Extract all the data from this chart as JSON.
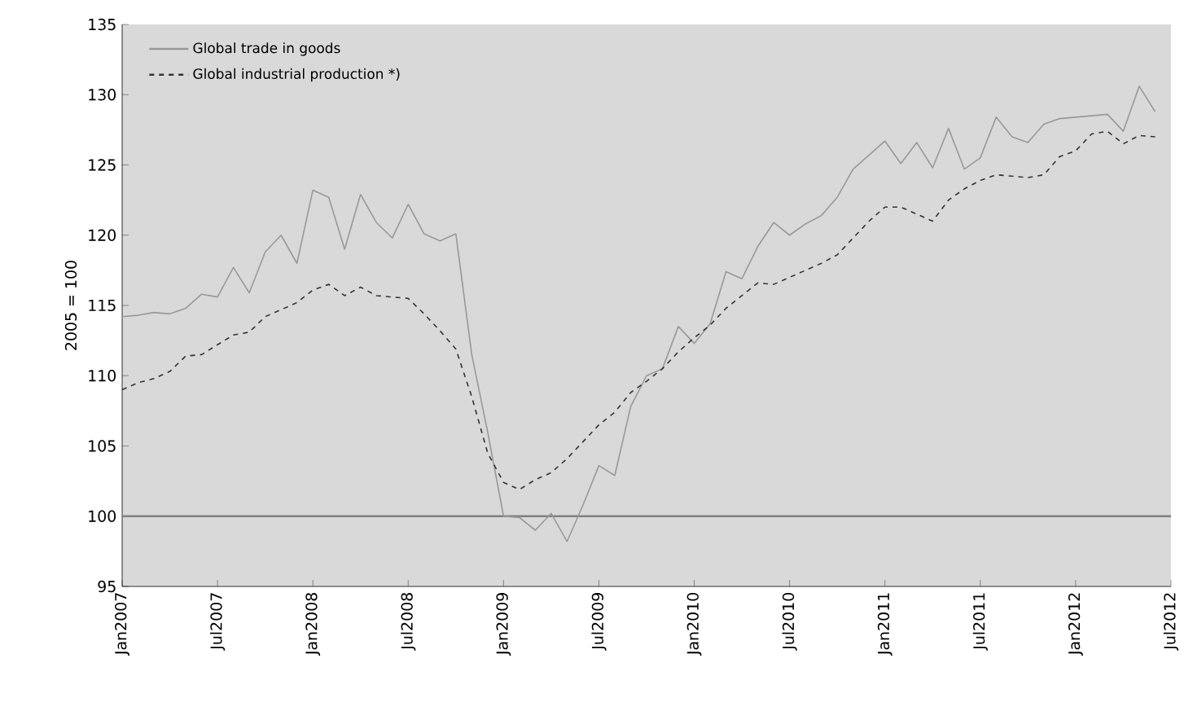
{
  "chart_data": {
    "type": "line",
    "ylabel": "2005 = 100",
    "x": [
      "2007-01",
      "2007-02",
      "2007-03",
      "2007-04",
      "2007-05",
      "2007-06",
      "2007-07",
      "2007-08",
      "2007-09",
      "2007-10",
      "2007-11",
      "2007-12",
      "2008-01",
      "2008-02",
      "2008-03",
      "2008-04",
      "2008-05",
      "2008-06",
      "2008-07",
      "2008-08",
      "2008-09",
      "2008-10",
      "2008-11",
      "2008-12",
      "2009-01",
      "2009-02",
      "2009-03",
      "2009-04",
      "2009-05",
      "2009-06",
      "2009-07",
      "2009-08",
      "2009-09",
      "2009-10",
      "2009-11",
      "2009-12",
      "2010-01",
      "2010-02",
      "2010-03",
      "2010-04",
      "2010-05",
      "2010-06",
      "2010-07",
      "2010-08",
      "2010-09",
      "2010-10",
      "2010-11",
      "2010-12",
      "2011-01",
      "2011-02",
      "2011-03",
      "2011-04",
      "2011-05",
      "2011-06",
      "2011-07",
      "2011-08",
      "2011-09",
      "2011-10",
      "2011-11",
      "2011-12",
      "2012-01",
      "2012-02",
      "2012-03",
      "2012-04",
      "2012-05",
      "2012-06"
    ],
    "series": [
      {
        "name": "Global trade in goods",
        "color": "#999999",
        "line_style": "solid",
        "values": [
          114.2,
          114.3,
          114.5,
          114.4,
          114.8,
          115.8,
          115.6,
          117.7,
          115.9,
          118.8,
          120.0,
          118.0,
          123.2,
          122.7,
          119.0,
          122.9,
          120.9,
          119.8,
          122.2,
          120.1,
          119.6,
          120.1,
          111.5,
          106.0,
          100.0,
          99.9,
          99.0,
          100.2,
          98.2,
          100.8,
          103.6,
          102.9,
          107.8,
          110.0,
          110.5,
          113.5,
          112.3,
          113.7,
          117.4,
          116.9,
          119.2,
          120.9,
          120.0,
          120.8,
          121.4,
          122.7,
          124.7,
          125.7,
          126.7,
          125.1,
          126.6,
          124.8,
          127.6,
          124.7,
          125.5,
          128.4,
          127.0,
          126.6,
          127.9,
          128.3,
          128.4,
          128.5,
          128.6,
          127.4,
          130.6,
          128.8
        ]
      },
      {
        "name": "Global industrial production *)",
        "color": "#333333",
        "line_style": "dashed",
        "values": [
          109.0,
          109.5,
          109.8,
          110.3,
          111.4,
          111.5,
          112.2,
          112.9,
          113.1,
          114.2,
          114.7,
          115.2,
          116.1,
          116.5,
          115.7,
          116.3,
          115.7,
          115.6,
          115.5,
          114.4,
          113.2,
          111.9,
          108.5,
          104.5,
          102.4,
          101.9,
          102.6,
          103.1,
          104.1,
          105.3,
          106.5,
          107.4,
          108.8,
          109.6,
          110.5,
          111.7,
          112.7,
          113.6,
          114.8,
          115.7,
          116.6,
          116.5,
          117.0,
          117.5,
          118.0,
          118.6,
          119.8,
          121.0,
          122.0,
          122.0,
          121.5,
          121.0,
          122.5,
          123.3,
          123.9,
          124.3,
          124.2,
          124.1,
          124.3,
          125.6,
          126.0,
          127.2,
          127.4,
          126.5,
          127.1,
          127.0
        ]
      }
    ],
    "xlim": [
      "2007-01",
      "2012-07"
    ],
    "xticks": [
      {
        "value": "2007-01",
        "label": "Jan2007"
      },
      {
        "value": "2007-07",
        "label": "Jul2007"
      },
      {
        "value": "2008-01",
        "label": "Jan2008"
      },
      {
        "value": "2008-07",
        "label": "Jul2008"
      },
      {
        "value": "2009-01",
        "label": "Jan2009"
      },
      {
        "value": "2009-07",
        "label": "Jul2009"
      },
      {
        "value": "2010-01",
        "label": "Jan2010"
      },
      {
        "value": "2010-07",
        "label": "Jul2010"
      },
      {
        "value": "2011-01",
        "label": "Jan2011"
      },
      {
        "value": "2011-07",
        "label": "Jul2011"
      },
      {
        "value": "2012-01",
        "label": "Jan2012"
      },
      {
        "value": "2012-07",
        "label": "Jul2012"
      }
    ],
    "ylim": [
      95,
      135
    ],
    "yticks": [
      95,
      100,
      105,
      110,
      115,
      120,
      125,
      130,
      135
    ],
    "ref_lines": [
      {
        "axis": "y",
        "value": 100,
        "color": "#808080"
      }
    ],
    "legend": "top left",
    "grid": false,
    "marker": "none"
  }
}
